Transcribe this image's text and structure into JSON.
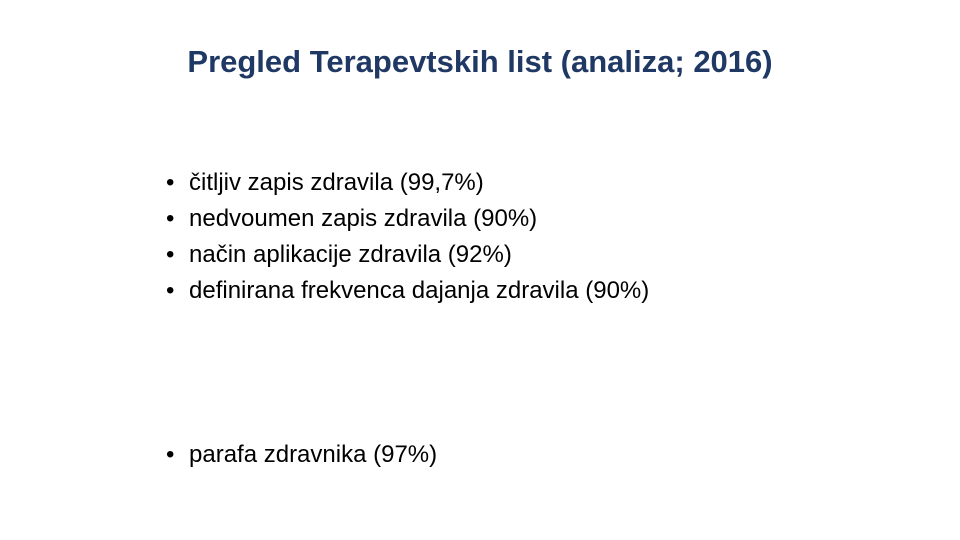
{
  "slide": {
    "title": "Pregled Terapevtskih list (analiza; 2016)",
    "bullets": [
      "čitljiv zapis zdravila (99,7%)",
      "nedvoumen zapis zdravila (90%)",
      "način aplikacije zdravila (92%)",
      "definirana frekvenca dajanja zdravila (90%)"
    ],
    "bullets_2": [
      "parafa zdravnika (97%)"
    ]
  },
  "colors": {
    "title": "#1f3864",
    "text": "#000000",
    "background": "#ffffff"
  }
}
